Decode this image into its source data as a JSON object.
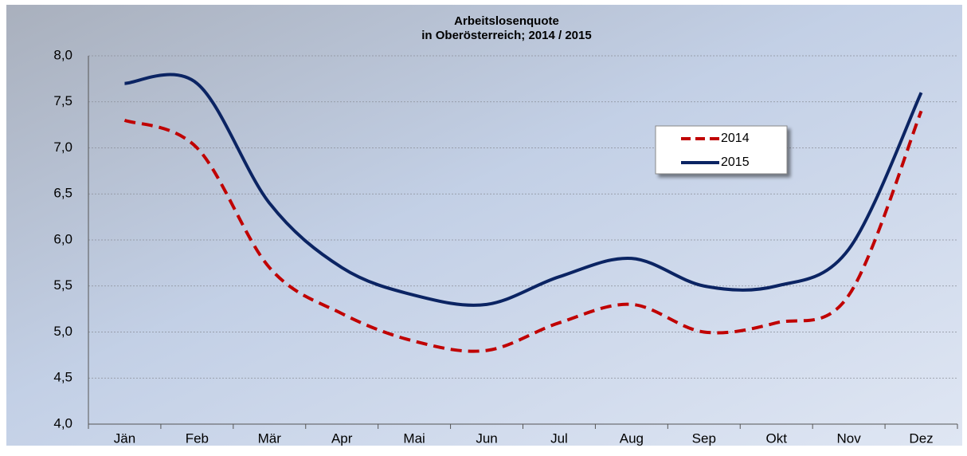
{
  "chart_data": {
    "type": "line",
    "title": "Arbeitslosenquote",
    "subtitle": "in Oberösterreich; 2014 / 2015",
    "categories": [
      "Jän",
      "Feb",
      "Mär",
      "Apr",
      "Mai",
      "Jun",
      "Jul",
      "Aug",
      "Sep",
      "Okt",
      "Nov",
      "Dez"
    ],
    "series": [
      {
        "name": "2014",
        "color": "#c00000",
        "dash": true,
        "values": [
          7.3,
          7.0,
          5.7,
          5.2,
          4.9,
          4.8,
          5.1,
          5.3,
          5.0,
          5.1,
          5.4,
          7.4
        ]
      },
      {
        "name": "2015",
        "color": "#0b2463",
        "dash": false,
        "values": [
          7.7,
          7.7,
          6.4,
          5.7,
          5.4,
          5.3,
          5.6,
          5.8,
          5.5,
          5.5,
          5.9,
          7.6
        ]
      }
    ],
    "ylim": [
      4,
      8
    ],
    "yticks": [
      {
        "value": 4,
        "label": "4,0"
      },
      {
        "value": 4.5,
        "label": "4,5"
      },
      {
        "value": 5,
        "label": "5,0"
      },
      {
        "value": 5.5,
        "label": "5,5"
      },
      {
        "value": 6,
        "label": "6,0"
      },
      {
        "value": 6.5,
        "label": "6,5"
      },
      {
        "value": 7,
        "label": "7,0"
      },
      {
        "value": 7.5,
        "label": "7,5"
      },
      {
        "value": 8,
        "label": "8,0"
      }
    ],
    "grid": true,
    "legend": "upper right"
  }
}
